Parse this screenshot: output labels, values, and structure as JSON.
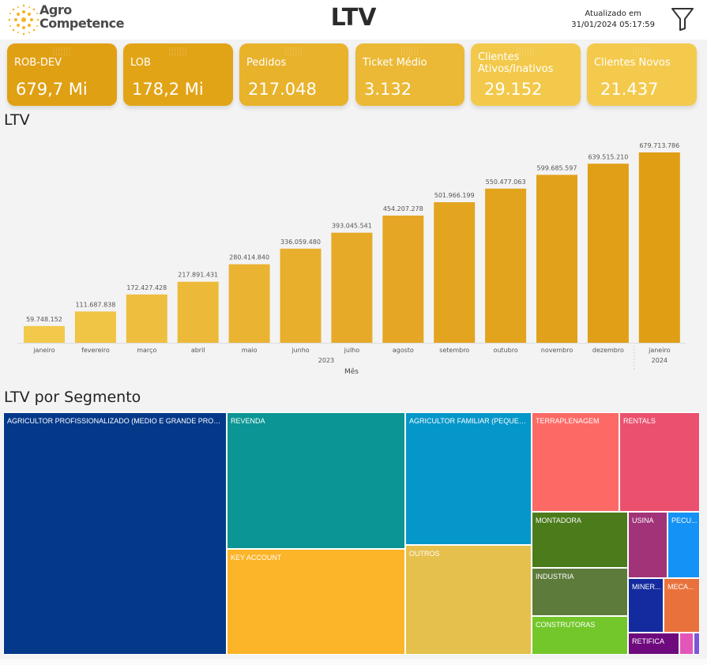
{
  "header": {
    "logo_line1": "Agro",
    "logo_line2": "Competence",
    "title": "LTV",
    "updated_label": "Atualizado em",
    "updated_value": "31/01/2024 05:17:59"
  },
  "kpis": [
    {
      "label": "ROB-DEV",
      "value": "679,7 Mi",
      "color": "#e0a013"
    },
    {
      "label": "LOB",
      "value": "178,2 Mi",
      "color": "#e2a417"
    },
    {
      "label": "Pedidos",
      "value": "217.048",
      "color": "#e8b22b"
    },
    {
      "label": "Ticket Médio",
      "value": "3.132",
      "color": "#ebb935"
    },
    {
      "label": "Clientes Ativos/Inativos",
      "value": "29.152",
      "color": "#f3c94b"
    },
    {
      "label": "Clientes Novos",
      "value": "21.437",
      "color": "#f4ca4d"
    }
  ],
  "ltv_section": {
    "title": "LTV"
  },
  "chart_data": {
    "type": "bar",
    "title": "LTV",
    "categories": [
      "janeiro",
      "fevereiro",
      "março",
      "abril",
      "maio",
      "junho",
      "julho",
      "agosto",
      "setembro",
      "outubro",
      "novembro",
      "dezembro",
      "janeiro"
    ],
    "values": [
      59748152,
      111687838,
      172427428,
      217891431,
      280414840,
      336059480,
      393045541,
      454207278,
      501966199,
      550477063,
      599685597,
      639515210,
      679713786
    ],
    "data_labels": [
      "59.748.152",
      "111.687.838",
      "172.427.428",
      "217.891.431",
      "280.414.840",
      "336.059.480",
      "393.045.541",
      "454.207.278",
      "501.966.199",
      "550.477.063",
      "599.685.597",
      "639.515.210",
      "679.713.786"
    ],
    "year_groups": [
      {
        "label": "2023",
        "count": 12
      },
      {
        "label": "2024",
        "count": 1
      }
    ],
    "xlabel": "Mês",
    "ylabel": "",
    "ylim": [
      0,
      679713786
    ],
    "grid": false,
    "colors": [
      "#f2c94a",
      "#f0c444",
      "#eebf3f",
      "#ecba38",
      "#eab432",
      "#e8af2d",
      "#e6aa28",
      "#e4a624",
      "#e3a420",
      "#e2a31d",
      "#e1a11a",
      "#e09f17",
      "#df9e14"
    ]
  },
  "segment_section": {
    "title": "LTV por Segmento"
  },
  "treemap": {
    "tiles": [
      {
        "label": "AGRICULTOR PROFISSIONALIZADO (MEDIO E GRANDE PRODUTO...",
        "color": "#04398a"
      },
      {
        "label": "REVENDA",
        "color": "#0b9595"
      },
      {
        "label": "KEY ACCOUNT",
        "color": "#fcb428"
      },
      {
        "label": "AGRICULTOR FAMILIAR (PEQUENO ...",
        "color": "#0597c9"
      },
      {
        "label": "OUTROS",
        "color": "#e6c04c"
      },
      {
        "label": "TERRAPLENAGEM",
        "color": "#fd6a66"
      },
      {
        "label": "RENTALS",
        "color": "#eb516f"
      },
      {
        "label": "MONTADORA",
        "color": "#4c7b1b"
      },
      {
        "label": "INDUSTRIA",
        "color": "#5d7b3a"
      },
      {
        "label": "CONSTRUTORAS",
        "color": "#73c72b"
      },
      {
        "label": "USINA",
        "color": "#a13379"
      },
      {
        "label": "PECU...",
        "color": "#1592f5"
      },
      {
        "label": "MINER...",
        "color": "#142b9f"
      },
      {
        "label": "MECA...",
        "color": "#e9723c"
      },
      {
        "label": "RETIFICA",
        "color": "#6e0a7e"
      },
      {
        "label": "",
        "color": "#e356b9"
      },
      {
        "label": "",
        "color": "#7b56d6"
      }
    ]
  }
}
